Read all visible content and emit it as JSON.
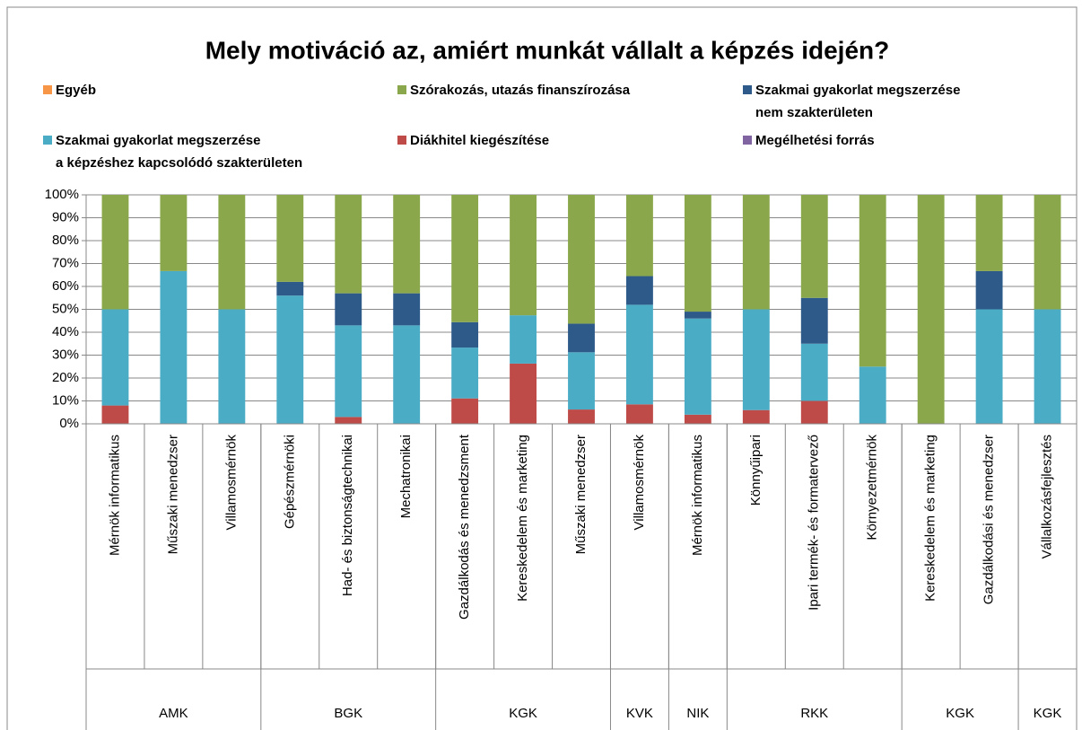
{
  "chart_data": {
    "type": "stacked_bar",
    "title": "Mely motiváció az, amiért munkát vállalt a képzés idején?",
    "categories": [
      "Mérnök informatikus",
      "Műszaki menedzser",
      "Villamosmérnök",
      "Gépészmérnöki",
      "Had- és biztonságtechnikai",
      "Mechatronikai",
      "Gazdálkodás és menedzsment",
      "Kereskedelem és marketing",
      "Műszaki menedzser",
      "Villamosmérnök",
      "Mérnök informatikus",
      "Könnyűipari",
      "Ipari termék- és formatervező",
      "Környezetmérnök",
      "Kereskedelem és marketing",
      "Gazdálkodási és menedzser",
      "Vállalkozásfejlesztés"
    ],
    "groups": [
      {
        "label": "AMK",
        "count": 3
      },
      {
        "label": "BGK",
        "count": 3
      },
      {
        "label": "KGK",
        "count": 3
      },
      {
        "label": "KVK",
        "count": 1
      },
      {
        "label": "NIK",
        "count": 1
      },
      {
        "label": "RKK",
        "count": 3
      },
      {
        "label": "KGK",
        "count": 2
      },
      {
        "label": "KGK",
        "count": 1
      }
    ],
    "series": [
      {
        "name": "Egyéb",
        "color": "#f79646",
        "values": [
          0,
          0,
          0,
          0,
          0,
          0,
          0,
          0,
          0,
          0,
          0,
          0,
          0,
          0,
          0,
          0,
          0
        ]
      },
      {
        "name": "Szórakozás, utazás finanszírozása",
        "color": "#8aa84b",
        "values": [
          50,
          33.3,
          50,
          38,
          43,
          43,
          55.6,
          52.6,
          56.25,
          35.5,
          51,
          50,
          45,
          75,
          100,
          33.3,
          50
        ]
      },
      {
        "name": "Szakmai gyakorlat megszerzése\nnem szakterületen",
        "color": "#2e5a8a",
        "values": [
          0,
          0,
          0,
          6,
          14,
          14,
          11.1,
          0,
          12.5,
          12.5,
          3,
          0,
          20,
          0,
          0,
          16.7,
          0
        ]
      },
      {
        "name": "Szakmai gyakorlat megszerzése\na képzéshez kapcsolódó szakterületen",
        "color": "#4bacc6",
        "values": [
          42,
          66.7,
          50,
          56,
          40,
          43,
          22.2,
          21.1,
          25,
          43.5,
          42,
          44,
          25,
          25,
          0,
          50,
          50
        ]
      },
      {
        "name": "Diákhitel kiegészítése",
        "color": "#be4b48",
        "values": [
          8,
          0,
          0,
          0,
          3,
          0,
          11.1,
          26.3,
          6.25,
          8.5,
          4,
          6,
          10,
          0,
          0,
          0,
          0
        ]
      },
      {
        "name": "Megélhetési forrás",
        "color": "#8064a2",
        "values": [
          0,
          0,
          0,
          0,
          0,
          0,
          0,
          0,
          0,
          0,
          0,
          0,
          0,
          0,
          0,
          0,
          0
        ]
      }
    ],
    "ylim": [
      0,
      100
    ],
    "yticks": [
      {
        "value": 0,
        "label": "0%"
      },
      {
        "value": 10,
        "label": "10%"
      },
      {
        "value": 20,
        "label": "20%"
      },
      {
        "value": 30,
        "label": "30%"
      },
      {
        "value": 40,
        "label": "40%"
      },
      {
        "value": 50,
        "label": "50%"
      },
      {
        "value": 60,
        "label": "60%"
      },
      {
        "value": 70,
        "label": "70%"
      },
      {
        "value": 80,
        "label": "80%"
      },
      {
        "value": 90,
        "label": "90%"
      },
      {
        "value": 100,
        "label": "100%"
      }
    ],
    "grid": true,
    "legend": "top"
  }
}
